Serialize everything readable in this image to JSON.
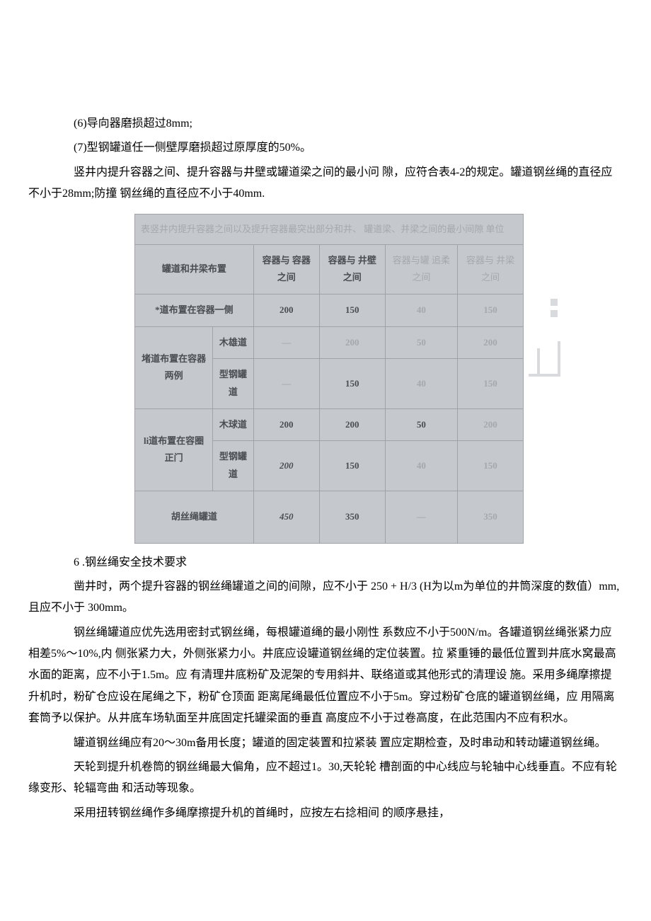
{
  "para1": "(6)导向器磨损超过8mm;",
  "para2": "(7)型钢罐道任一侧壁厚磨损超过原厚度的50%。",
  "para3": "竖井内提升容器之间、提升容器与井壁或罐道梁之间的最小问   隙，应符合表4-2的规定。罐道钢丝绳的直径应不小于28mm;防撞     钢丝绳的直径应不小于40mm.",
  "table": {
    "caption": "表竖井内提升容器之间以及提升容器最突出部分和井、  罐道梁、并梁之间的最小间隙                                                                                                          单位",
    "headers": {
      "col1": "罐道和井梁布置",
      "col2": "容器与 容器之间",
      "col3": "容器与 井壁之间",
      "col4": "容器与罐 追柔之间",
      "col5": "容器与 井梁之间"
    },
    "rows": [
      {
        "label": "*道布置在容器一侧",
        "sub": "",
        "v1": "200",
        "v2": "150",
        "v3": "40",
        "v4": "150",
        "rowspan": 1
      },
      {
        "label": "堵道布置在容器两例",
        "sub": "木雄道",
        "v1": "—",
        "v2": "200",
        "v3": "50",
        "v4": "200"
      },
      {
        "label": "",
        "sub": "型钢罐道",
        "v1": "—",
        "v2": "150",
        "v3": "40",
        "v4": "150"
      },
      {
        "label": "li道布置在容圈正门",
        "sub": "木球道",
        "v1": "200",
        "v2": "200",
        "v3": "50",
        "v4": "200"
      },
      {
        "label": "",
        "sub": "型钢罐道",
        "v1": "200",
        "v2": "150",
        "v3": "40",
        "v4": "150"
      },
      {
        "label": "胡丝绳罐道",
        "sub": "",
        "v1": "450",
        "v2": "350",
        "v3": "—",
        "v4": "350",
        "rowspan": 1
      }
    ]
  },
  "section6_title": "6    .钢丝绳安全技术要求",
  "para4": "凿井时，两个提升容器的钢丝绳罐道之间的间隙，应不小于  250 + H/3 (H为以m为单位的井筒深度的数值）mm,且应不小于 300mm。",
  "para5": "钢丝绳罐道应优先选用密封式钢丝绳，每根罐道绳的最小刚性  系数应不小于500N/m。各罐道钢丝绳张紧力应相差5%～10%,内   侧张紧力大，外侧张紧力小。井底应设罐道钢丝绳的定位装置。拉   紧重锤的最低位置到井底水窝最高水面的距离，应不小于1.5m。应   有清理井底粉矿及泥架的专用斜井、联络道或其他形式的清理设   施。采用多绳摩擦提升机时，粉矿仓应设在尾绳之下，粉矿仓顶面  距离尾绳最低位置应不小于5m。穿过粉矿仓底的罐道钢丝绳，应   用隔离套筒予以保护。从井底车场轨面至井底固定托罐梁面的垂直   高度应不小于过卷高度，在此范围内不应有积水。",
  "para6": "罐道钢丝绳应有20～30m备用长度；罐道的固定装置和拉紧装    置应定期检查，及时串动和转动罐道钢丝绳。",
  "para7": "天轮到提升机卷筒的钢丝绳最大偏角，应不超过1。30,天轮轮     槽剖面的中心线应与轮轴中心线垂直。不应有轮缘变形、轮辐弯曲  和活动等现象。",
  "para8": "采用扭转钢丝绳作多绳摩擦提升机的首绳时，应按左右捻相间   的顺序悬挂，"
}
